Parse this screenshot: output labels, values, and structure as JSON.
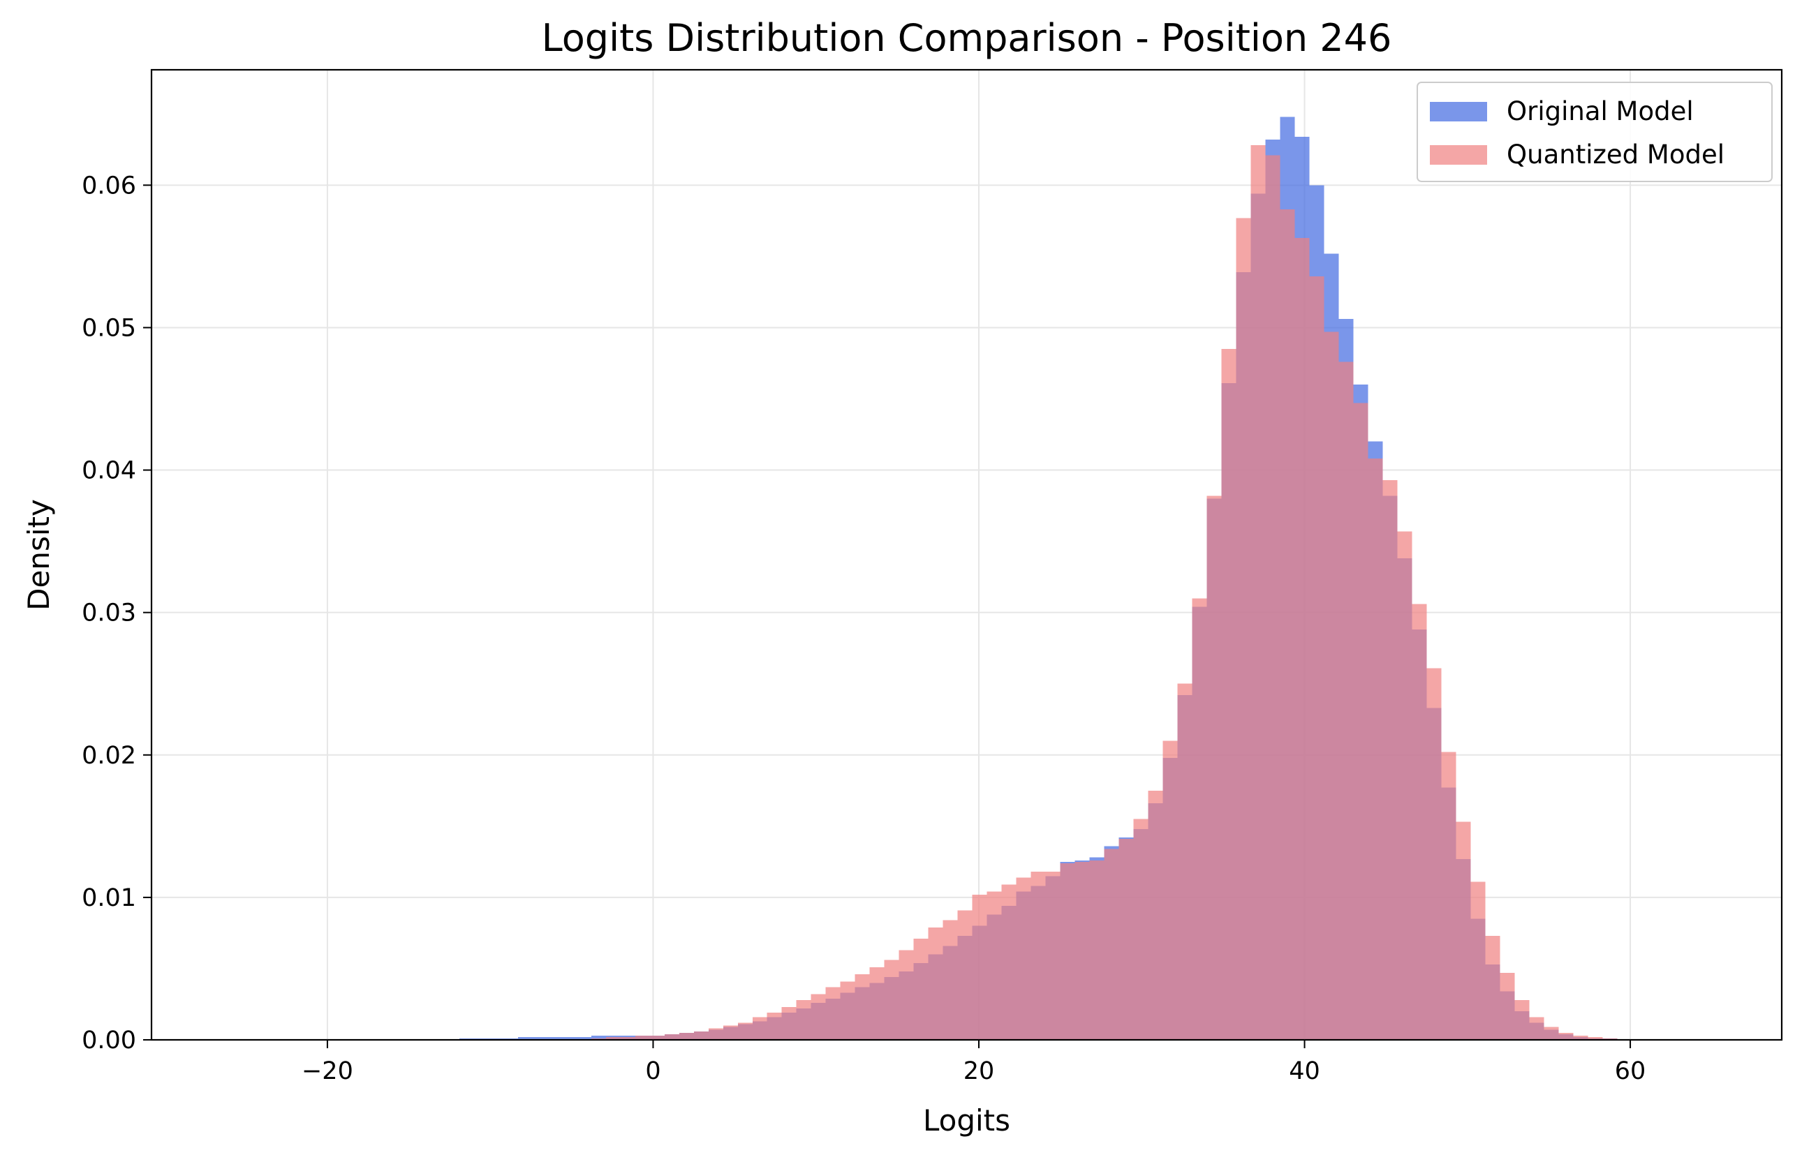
{
  "chart_data": {
    "type": "histogram",
    "title": "Logits Distribution Comparison - Position 246",
    "xlabel": "Logits",
    "ylabel": "Density",
    "xlim": [
      -30.8,
      69.3
    ],
    "ylim": [
      0,
      0.0681
    ],
    "xticks": [
      -20,
      0,
      20,
      40,
      60
    ],
    "xtick_labels": [
      "−20",
      "0",
      "20",
      "40",
      "60"
    ],
    "yticks": [
      0,
      0.01,
      0.02,
      0.03,
      0.04,
      0.05,
      0.06
    ],
    "ytick_labels": [
      "0.00",
      "0.01",
      "0.02",
      "0.03",
      "0.04",
      "0.05",
      "0.06"
    ],
    "grid": true,
    "legend_position": "top-right",
    "bin_width": 0.9,
    "series": [
      {
        "name": "Original Model",
        "color": "#4169e1",
        "opacity": 0.7,
        "bins": [
          [
            -11.9,
            0.0001
          ],
          [
            -11.0,
            0.0001
          ],
          [
            -10.1,
            0.0001
          ],
          [
            -9.2,
            0.0001
          ],
          [
            -8.3,
            0.0002
          ],
          [
            -7.4,
            0.0002
          ],
          [
            -6.5,
            0.0002
          ],
          [
            -5.6,
            0.0002
          ],
          [
            -4.7,
            0.0002
          ],
          [
            -3.8,
            0.0003
          ],
          [
            -2.9,
            0.0003
          ],
          [
            -2.0,
            0.0003
          ],
          [
            -1.1,
            0.0003
          ],
          [
            -0.2,
            0.0003
          ],
          [
            0.7,
            0.0004
          ],
          [
            1.6,
            0.0005
          ],
          [
            2.5,
            0.0006
          ],
          [
            3.4,
            0.0007
          ],
          [
            4.3,
            0.0009
          ],
          [
            5.2,
            0.0011
          ],
          [
            6.1,
            0.0013
          ],
          [
            7.0,
            0.0016
          ],
          [
            7.9,
            0.0019
          ],
          [
            8.8,
            0.0022
          ],
          [
            9.7,
            0.0026
          ],
          [
            10.6,
            0.0029
          ],
          [
            11.5,
            0.0033
          ],
          [
            12.4,
            0.0037
          ],
          [
            13.3,
            0.004
          ],
          [
            14.2,
            0.0044
          ],
          [
            15.1,
            0.0048
          ],
          [
            16.0,
            0.0054
          ],
          [
            16.9,
            0.006
          ],
          [
            17.8,
            0.0066
          ],
          [
            18.7,
            0.0073
          ],
          [
            19.6,
            0.008
          ],
          [
            20.5,
            0.0088
          ],
          [
            21.4,
            0.0094
          ],
          [
            22.3,
            0.0104
          ],
          [
            23.2,
            0.0108
          ],
          [
            24.1,
            0.0115
          ],
          [
            25.0,
            0.0125
          ],
          [
            25.9,
            0.0126
          ],
          [
            26.8,
            0.0128
          ],
          [
            27.7,
            0.0136
          ],
          [
            28.6,
            0.0142
          ],
          [
            29.5,
            0.0148
          ],
          [
            30.4,
            0.0166
          ],
          [
            31.3,
            0.0198
          ],
          [
            32.2,
            0.0242
          ],
          [
            33.1,
            0.0304
          ],
          [
            34.0,
            0.038
          ],
          [
            34.9,
            0.0461
          ],
          [
            35.8,
            0.0539
          ],
          [
            36.7,
            0.0594
          ],
          [
            37.6,
            0.0632
          ],
          [
            38.5,
            0.0648
          ],
          [
            39.4,
            0.0634
          ],
          [
            40.3,
            0.06
          ],
          [
            41.2,
            0.0552
          ],
          [
            42.1,
            0.0506
          ],
          [
            43.0,
            0.046
          ],
          [
            43.9,
            0.042
          ],
          [
            44.8,
            0.0382
          ],
          [
            45.7,
            0.0338
          ],
          [
            46.6,
            0.0288
          ],
          [
            47.5,
            0.0233
          ],
          [
            48.4,
            0.0177
          ],
          [
            49.3,
            0.0127
          ],
          [
            50.2,
            0.0085
          ],
          [
            51.1,
            0.0053
          ],
          [
            52.0,
            0.0034
          ],
          [
            52.9,
            0.002
          ],
          [
            53.8,
            0.0012
          ],
          [
            54.7,
            0.0007
          ],
          [
            55.6,
            0.0004
          ],
          [
            56.5,
            0.0002
          ],
          [
            57.4,
            0.0001
          ],
          [
            58.3,
            0.0001
          ]
        ]
      },
      {
        "name": "Quantized Model",
        "color": "#f08080",
        "opacity": 0.7,
        "bins": [
          [
            -3.8,
            0.0001
          ],
          [
            -2.9,
            0.0002
          ],
          [
            -2.0,
            0.0002
          ],
          [
            -1.1,
            0.0003
          ],
          [
            -0.2,
            0.0003
          ],
          [
            0.7,
            0.0004
          ],
          [
            1.6,
            0.0005
          ],
          [
            2.5,
            0.0006
          ],
          [
            3.4,
            0.0008
          ],
          [
            4.3,
            0.001
          ],
          [
            5.2,
            0.0012
          ],
          [
            6.1,
            0.0016
          ],
          [
            7.0,
            0.0019
          ],
          [
            7.9,
            0.0023
          ],
          [
            8.8,
            0.0028
          ],
          [
            9.7,
            0.0032
          ],
          [
            10.6,
            0.0037
          ],
          [
            11.5,
            0.0041
          ],
          [
            12.4,
            0.0046
          ],
          [
            13.3,
            0.0051
          ],
          [
            14.2,
            0.0056
          ],
          [
            15.1,
            0.0063
          ],
          [
            16.0,
            0.0071
          ],
          [
            16.9,
            0.0079
          ],
          [
            17.8,
            0.0084
          ],
          [
            18.7,
            0.0091
          ],
          [
            19.6,
            0.0102
          ],
          [
            20.5,
            0.0104
          ],
          [
            21.4,
            0.0109
          ],
          [
            22.3,
            0.0114
          ],
          [
            23.2,
            0.0118
          ],
          [
            24.1,
            0.0118
          ],
          [
            25.0,
            0.0124
          ],
          [
            25.9,
            0.0125
          ],
          [
            26.8,
            0.0126
          ],
          [
            27.7,
            0.0134
          ],
          [
            28.6,
            0.0141
          ],
          [
            29.5,
            0.0155
          ],
          [
            30.4,
            0.0175
          ],
          [
            31.3,
            0.021
          ],
          [
            32.2,
            0.025
          ],
          [
            33.1,
            0.031
          ],
          [
            34.0,
            0.0382
          ],
          [
            34.9,
            0.0485
          ],
          [
            35.8,
            0.0577
          ],
          [
            36.7,
            0.0628
          ],
          [
            37.6,
            0.0621
          ],
          [
            38.5,
            0.0583
          ],
          [
            39.4,
            0.0563
          ],
          [
            40.3,
            0.0536
          ],
          [
            41.2,
            0.0497
          ],
          [
            42.1,
            0.0476
          ],
          [
            43.0,
            0.0447
          ],
          [
            43.9,
            0.0408
          ],
          [
            44.8,
            0.0393
          ],
          [
            45.7,
            0.0357
          ],
          [
            46.6,
            0.0306
          ],
          [
            47.5,
            0.0261
          ],
          [
            48.4,
            0.0202
          ],
          [
            49.3,
            0.0153
          ],
          [
            50.2,
            0.0111
          ],
          [
            51.1,
            0.0073
          ],
          [
            52.0,
            0.0047
          ],
          [
            52.9,
            0.0028
          ],
          [
            53.8,
            0.0016
          ],
          [
            54.7,
            0.0009
          ],
          [
            55.6,
            0.0005
          ],
          [
            56.5,
            0.0003
          ],
          [
            57.4,
            0.0002
          ],
          [
            58.3,
            0.0001
          ]
        ]
      }
    ]
  }
}
